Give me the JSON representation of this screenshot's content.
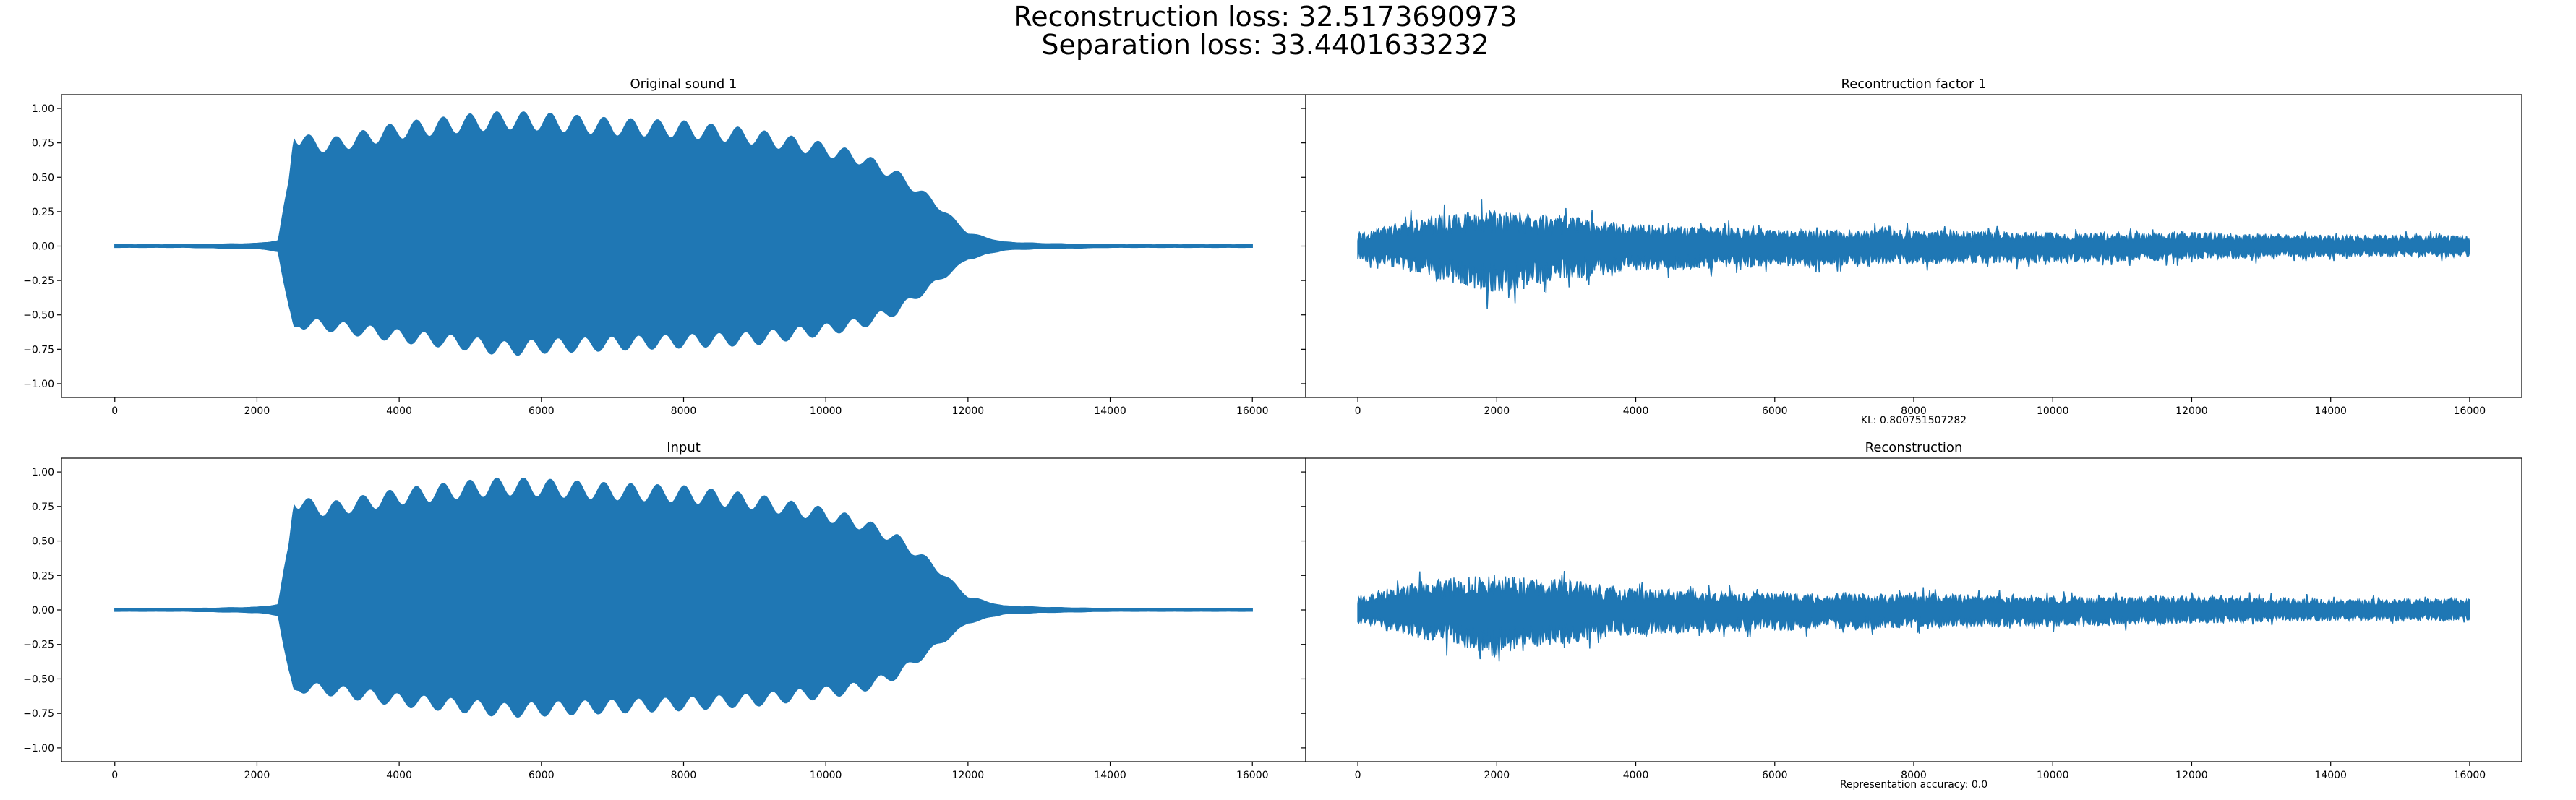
{
  "figure": {
    "suptitle_line1": "Reconstruction loss: 32.5173690973",
    "suptitle_line2": "Separation loss: 33.4401633232",
    "line_color": "#1f77b4"
  },
  "chart_data": [
    {
      "type": "line",
      "title": "Original sound 1",
      "xlabel": "",
      "ylabel": "",
      "xlim": [
        -750,
        16750
      ],
      "ylim": [
        -1.1,
        1.1
      ],
      "xticks": [
        0,
        2000,
        4000,
        6000,
        8000,
        10000,
        12000,
        14000,
        16000
      ],
      "yticks": [
        -1.0,
        -0.75,
        -0.5,
        -0.25,
        0.0,
        0.25,
        0.5,
        0.75,
        1.0
      ],
      "ytick_labels": [
        "−1.00",
        "−0.75",
        "−0.50",
        "−0.25",
        "0.00",
        "0.25",
        "0.50",
        "0.75",
        "1.00"
      ],
      "series": [
        {
          "envelope_x": [
            0,
            1000,
            2000,
            2300,
            2450,
            2520,
            2600,
            3000,
            4000,
            5000,
            5500,
            6000,
            7000,
            8000,
            9000,
            10000,
            10500,
            11000,
            11500,
            12000,
            12500,
            13000,
            14000,
            15000,
            16000
          ],
          "envelope_upper": [
            0.01,
            0.01,
            0.02,
            0.04,
            0.5,
            0.9,
            0.82,
            0.78,
            0.9,
            0.96,
            0.98,
            0.97,
            0.93,
            0.91,
            0.85,
            0.75,
            0.68,
            0.55,
            0.35,
            0.1,
            0.03,
            0.02,
            0.01,
            0.01,
            0.01
          ],
          "envelope_lower": [
            -0.01,
            -0.01,
            -0.02,
            -0.04,
            -0.5,
            -0.66,
            -0.6,
            -0.62,
            -0.7,
            -0.76,
            -0.8,
            -0.78,
            -0.76,
            -0.74,
            -0.72,
            -0.65,
            -0.6,
            -0.5,
            -0.3,
            -0.1,
            -0.03,
            -0.02,
            -0.01,
            -0.01,
            -0.01
          ]
        }
      ]
    },
    {
      "type": "line",
      "title": "Recontruction factor 1",
      "xlabel": "KL: 0.800751507282",
      "ylabel": "",
      "xlim": [
        -750,
        16750
      ],
      "ylim": [
        -1.1,
        1.1
      ],
      "xticks": [
        0,
        2000,
        4000,
        6000,
        8000,
        10000,
        12000,
        14000,
        16000
      ],
      "series": [
        {
          "envelope_x": [
            0,
            1000,
            2000,
            3000,
            4000,
            6000,
            8000,
            10000,
            12000,
            14000,
            16000
          ],
          "envelope_upper": [
            0.1,
            0.22,
            0.26,
            0.22,
            0.16,
            0.12,
            0.12,
            0.1,
            0.1,
            0.08,
            0.08
          ],
          "envelope_lower": [
            -0.1,
            -0.22,
            -0.35,
            -0.25,
            -0.18,
            -0.15,
            -0.13,
            -0.12,
            -0.1,
            -0.08,
            -0.08
          ]
        }
      ]
    },
    {
      "type": "line",
      "title": "Input",
      "xlabel": "",
      "ylabel": "",
      "xlim": [
        -750,
        16750
      ],
      "ylim": [
        -1.1,
        1.1
      ],
      "xticks": [
        0,
        2000,
        4000,
        6000,
        8000,
        10000,
        12000,
        14000,
        16000
      ],
      "yticks": [
        -1.0,
        -0.75,
        -0.5,
        -0.25,
        0.0,
        0.25,
        0.5,
        0.75,
        1.0
      ],
      "ytick_labels": [
        "−1.00",
        "−0.75",
        "−0.50",
        "−0.25",
        "0.00",
        "0.25",
        "0.50",
        "0.75",
        "1.00"
      ],
      "series": [
        {
          "envelope_x": [
            0,
            1000,
            2000,
            2300,
            2450,
            2520,
            2600,
            3000,
            4000,
            5000,
            5500,
            6000,
            7000,
            8000,
            9000,
            10000,
            10500,
            11000,
            11500,
            12000,
            12500,
            13000,
            14000,
            15000,
            16000
          ],
          "envelope_upper": [
            0.01,
            0.01,
            0.02,
            0.04,
            0.5,
            0.88,
            0.82,
            0.78,
            0.88,
            0.94,
            0.96,
            0.95,
            0.92,
            0.9,
            0.84,
            0.74,
            0.67,
            0.55,
            0.35,
            0.1,
            0.03,
            0.02,
            0.01,
            0.01,
            0.01
          ],
          "envelope_lower": [
            -0.01,
            -0.01,
            -0.02,
            -0.04,
            -0.5,
            -0.65,
            -0.6,
            -0.62,
            -0.7,
            -0.75,
            -0.78,
            -0.77,
            -0.75,
            -0.73,
            -0.7,
            -0.64,
            -0.6,
            -0.5,
            -0.3,
            -0.1,
            -0.03,
            -0.02,
            -0.01,
            -0.01,
            -0.01
          ]
        }
      ]
    },
    {
      "type": "line",
      "title": "Reconstruction",
      "xlabel": "Representation accuracy: 0.0",
      "ylabel": "",
      "xlim": [
        -750,
        16750
      ],
      "ylim": [
        -1.1,
        1.1
      ],
      "xticks": [
        0,
        2000,
        4000,
        6000,
        8000,
        10000,
        12000,
        14000,
        16000
      ],
      "series": [
        {
          "envelope_x": [
            0,
            1000,
            2000,
            3000,
            4000,
            6000,
            8000,
            10000,
            12000,
            14000,
            16000
          ],
          "envelope_upper": [
            0.1,
            0.22,
            0.26,
            0.22,
            0.16,
            0.12,
            0.12,
            0.1,
            0.1,
            0.08,
            0.08
          ],
          "envelope_lower": [
            -0.1,
            -0.22,
            -0.35,
            -0.25,
            -0.18,
            -0.15,
            -0.13,
            -0.12,
            -0.1,
            -0.08,
            -0.08
          ]
        }
      ]
    }
  ]
}
